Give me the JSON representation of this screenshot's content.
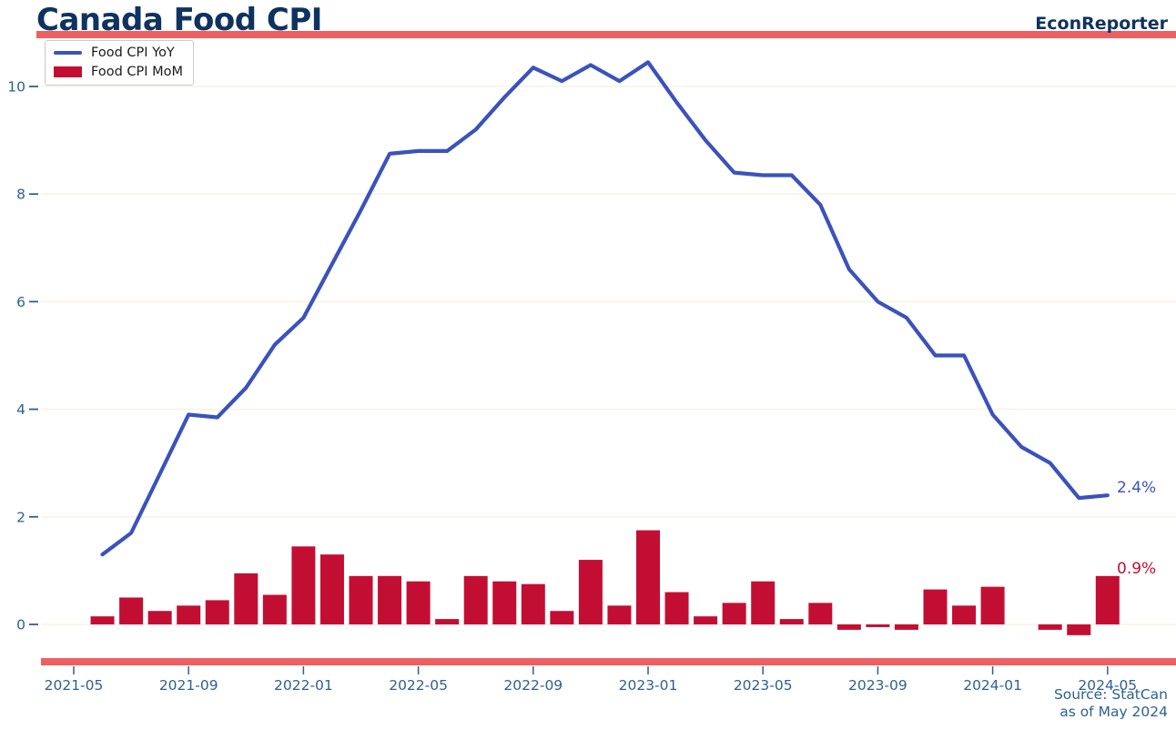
{
  "page": {
    "title": "Canada Food CPI",
    "brand": "EconReporter"
  },
  "legend": {
    "items": [
      {
        "label": "Food CPI YoY"
      },
      {
        "label": "Food CPI MoM"
      }
    ]
  },
  "annotations": {
    "yoy_last": "2.4%",
    "mom_last": "0.9%"
  },
  "source": {
    "line1": "Source: StatCan",
    "line2": "as of May 2024"
  },
  "colors": {
    "navy": "#0f3360",
    "accent_band": "#ee6060",
    "line_blue": "#3b52bc",
    "bar_crimson": "#c30e33",
    "axis_text": "#2e6094",
    "gridline": "#f7f4e6"
  },
  "chart_data": {
    "type": "line+bar",
    "title": "Canada Food CPI",
    "x": [
      "2021-06",
      "2021-07",
      "2021-08",
      "2021-09",
      "2021-10",
      "2021-11",
      "2021-12",
      "2022-01",
      "2022-02",
      "2022-03",
      "2022-04",
      "2022-05",
      "2022-06",
      "2022-07",
      "2022-08",
      "2022-09",
      "2022-10",
      "2022-11",
      "2022-12",
      "2023-01",
      "2023-02",
      "2023-03",
      "2023-04",
      "2023-05",
      "2023-06",
      "2023-07",
      "2023-08",
      "2023-09",
      "2023-10",
      "2023-11",
      "2023-12",
      "2024-01",
      "2024-02",
      "2024-03",
      "2024-04",
      "2024-05"
    ],
    "series": [
      {
        "name": "Food CPI YoY",
        "type": "line",
        "color": "#3b52bc",
        "values": [
          1.3,
          1.7,
          2.8,
          3.9,
          3.85,
          4.4,
          5.2,
          5.7,
          6.7,
          7.7,
          8.75,
          8.8,
          8.8,
          9.2,
          9.8,
          10.35,
          10.1,
          10.4,
          10.1,
          10.45,
          9.7,
          9.0,
          8.4,
          8.35,
          8.35,
          7.8,
          6.6,
          6.0,
          5.7,
          5.0,
          5.0,
          3.9,
          3.3,
          3.0,
          2.35,
          2.4
        ]
      },
      {
        "name": "Food CPI MoM",
        "type": "bar",
        "color": "#c30e33",
        "values": [
          0.15,
          0.5,
          0.25,
          0.35,
          0.45,
          0.95,
          0.55,
          1.45,
          1.3,
          0.9,
          0.9,
          0.8,
          0.1,
          0.9,
          0.8,
          0.75,
          0.25,
          1.2,
          0.35,
          1.75,
          0.6,
          0.15,
          0.4,
          0.8,
          0.1,
          0.4,
          -0.1,
          -0.05,
          -0.1,
          0.65,
          0.35,
          0.7,
          0.0,
          -0.1,
          -0.2,
          0.9
        ]
      }
    ],
    "x_tick_labels": [
      "2021-05",
      "2021-09",
      "2022-01",
      "2022-05",
      "2022-09",
      "2023-01",
      "2023-05",
      "2023-09",
      "2024-01",
      "2024-05"
    ],
    "y_ticks": [
      0,
      2,
      4,
      6,
      8,
      10
    ],
    "ylim": [
      -0.65,
      10.9
    ],
    "grid": true,
    "legend_position": "upper-left",
    "last_value_labels": {
      "yoy": "2.4%",
      "mom": "0.9%"
    }
  }
}
